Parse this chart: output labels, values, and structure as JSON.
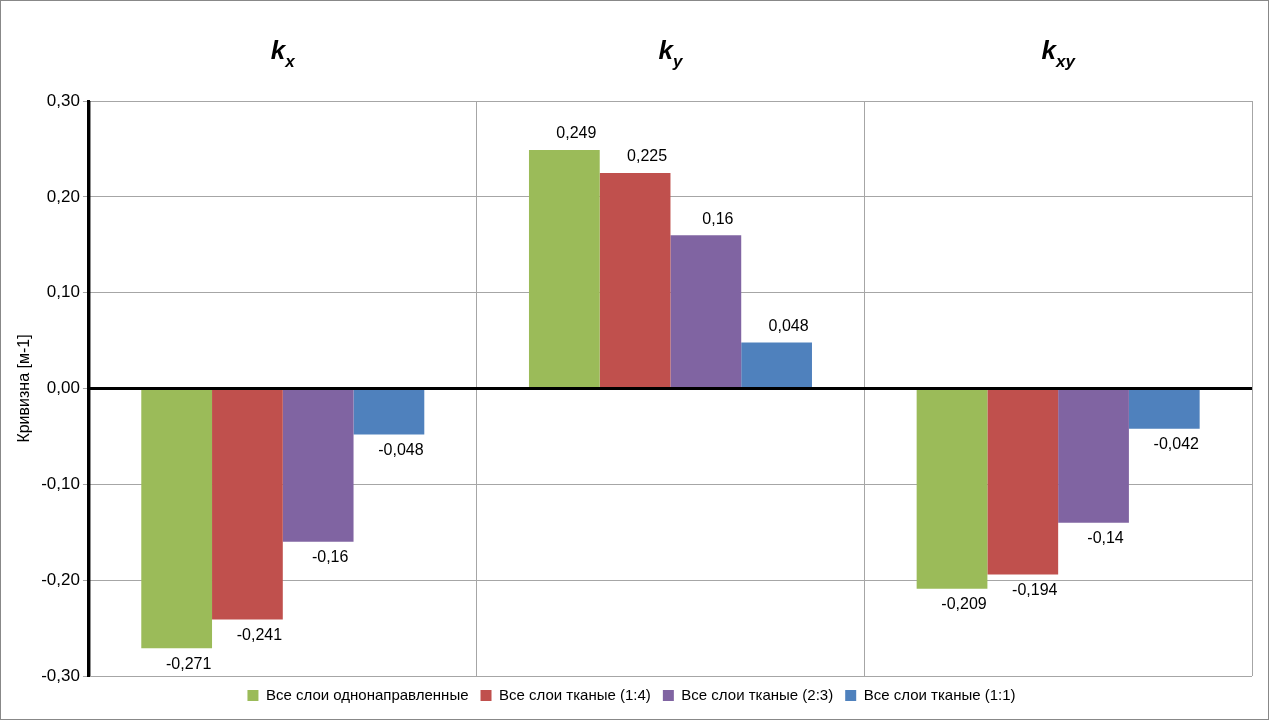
{
  "chart_data": {
    "type": "bar",
    "categories": [
      "k$_{x}$",
      "k$_{y}$",
      "k$_{xy}$"
    ],
    "ylabel": "Кривизна [м-1]",
    "ylim": [
      -0.3,
      0.3
    ],
    "yticks": [
      {
        "value": -0.3,
        "label": "-0,30"
      },
      {
        "value": -0.2,
        "label": "-0,20"
      },
      {
        "value": -0.1,
        "label": "-0,10"
      },
      {
        "value": 0,
        "label": "0,00"
      },
      {
        "value": 0.1,
        "label": "0,10"
      },
      {
        "value": 0.2,
        "label": "0,20"
      },
      {
        "value": 0.3,
        "label": "0,30"
      }
    ],
    "grid": true,
    "legend": "bottom",
    "series": [
      {
        "name": "Все слои однонаправленные",
        "color": "#9bbb59",
        "values": [
          -0.271,
          0.249,
          -0.209
        ],
        "value_labels": [
          "-0,271",
          "0,249",
          "-0,209"
        ]
      },
      {
        "name": "Все слои тканые (1:4)",
        "color": "#c0504d",
        "values": [
          -0.241,
          0.225,
          -0.194
        ],
        "value_labels": [
          "-0,241",
          "0,225",
          "-0,194"
        ]
      },
      {
        "name": "Все слои тканые (2:3)",
        "color": "#8064a2",
        "values": [
          -0.16,
          0.16,
          -0.14
        ],
        "value_labels": [
          "-0,16",
          "0,16",
          "-0,14"
        ]
      },
      {
        "name": "Все слои тканые (1:1)",
        "color": "#4f81bd",
        "values": [
          -0.048,
          0.048,
          -0.042
        ],
        "value_labels": [
          "-0,048",
          "0,048",
          "-0,042"
        ]
      }
    ]
  }
}
